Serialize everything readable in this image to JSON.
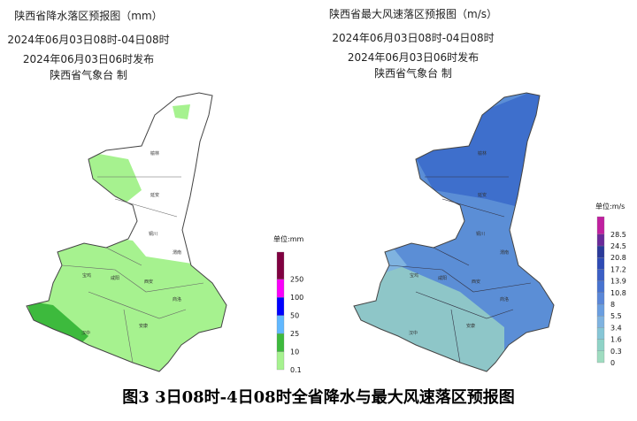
{
  "maps": [
    {
      "title": "陕西省降水落区预报图（mm）",
      "period": "2024年06月03日08时-04日08时",
      "issued": "2024年06月03日06时发布",
      "agency": "陕西省气象台  制",
      "legend": {
        "title": "单位:mm",
        "levels": [
          {
            "value": 0.1,
            "color": "#a6f28f"
          },
          {
            "value": 10,
            "color": "#3dba3d"
          },
          {
            "value": 25,
            "color": "#61b8ff"
          },
          {
            "value": 50,
            "color": "#0000ff"
          },
          {
            "value": 100,
            "color": "#fa00fa"
          },
          {
            "value": 250,
            "color": "#800040"
          }
        ]
      },
      "cities": [
        "榆林",
        "延安",
        "铜川",
        "渭南",
        "宝鸡",
        "咸阳",
        "西安",
        "商洛",
        "汉中",
        "安康"
      ]
    },
    {
      "title": "陕西省最大风速落区预报图（m/s）",
      "period": "2024年06月03日08时-04日08时",
      "issued": "2024年06月03日06时发布",
      "agency": "陕西省气象台  制",
      "legend": {
        "title": "单位:m/s",
        "levels": [
          {
            "value": 0,
            "color": "#9fdcc0"
          },
          {
            "value": 0.3,
            "color": "#8fd3c7"
          },
          {
            "value": 1.6,
            "color": "#86c6d6"
          },
          {
            "value": 3.4,
            "color": "#7fb3e0"
          },
          {
            "value": 5.5,
            "color": "#6a9ee0"
          },
          {
            "value": 8,
            "color": "#5a87d8"
          },
          {
            "value": 10.8,
            "color": "#4873d0"
          },
          {
            "value": 13.9,
            "color": "#3b5fc6"
          },
          {
            "value": 17.2,
            "color": "#2e4bb5"
          },
          {
            "value": 20.8,
            "color": "#2a3a9a"
          },
          {
            "value": 24.5,
            "color": "#6a2a9a"
          },
          {
            "value": 28.5,
            "color": "#c020a0"
          }
        ]
      },
      "cities": [
        "榆林",
        "延安",
        "铜川",
        "渭南",
        "宝鸡",
        "咸阳",
        "西安",
        "商洛",
        "汉中",
        "安康"
      ]
    }
  ],
  "caption": "图3  3日08时-4日08时全省降水与最大风速落区预报图"
}
